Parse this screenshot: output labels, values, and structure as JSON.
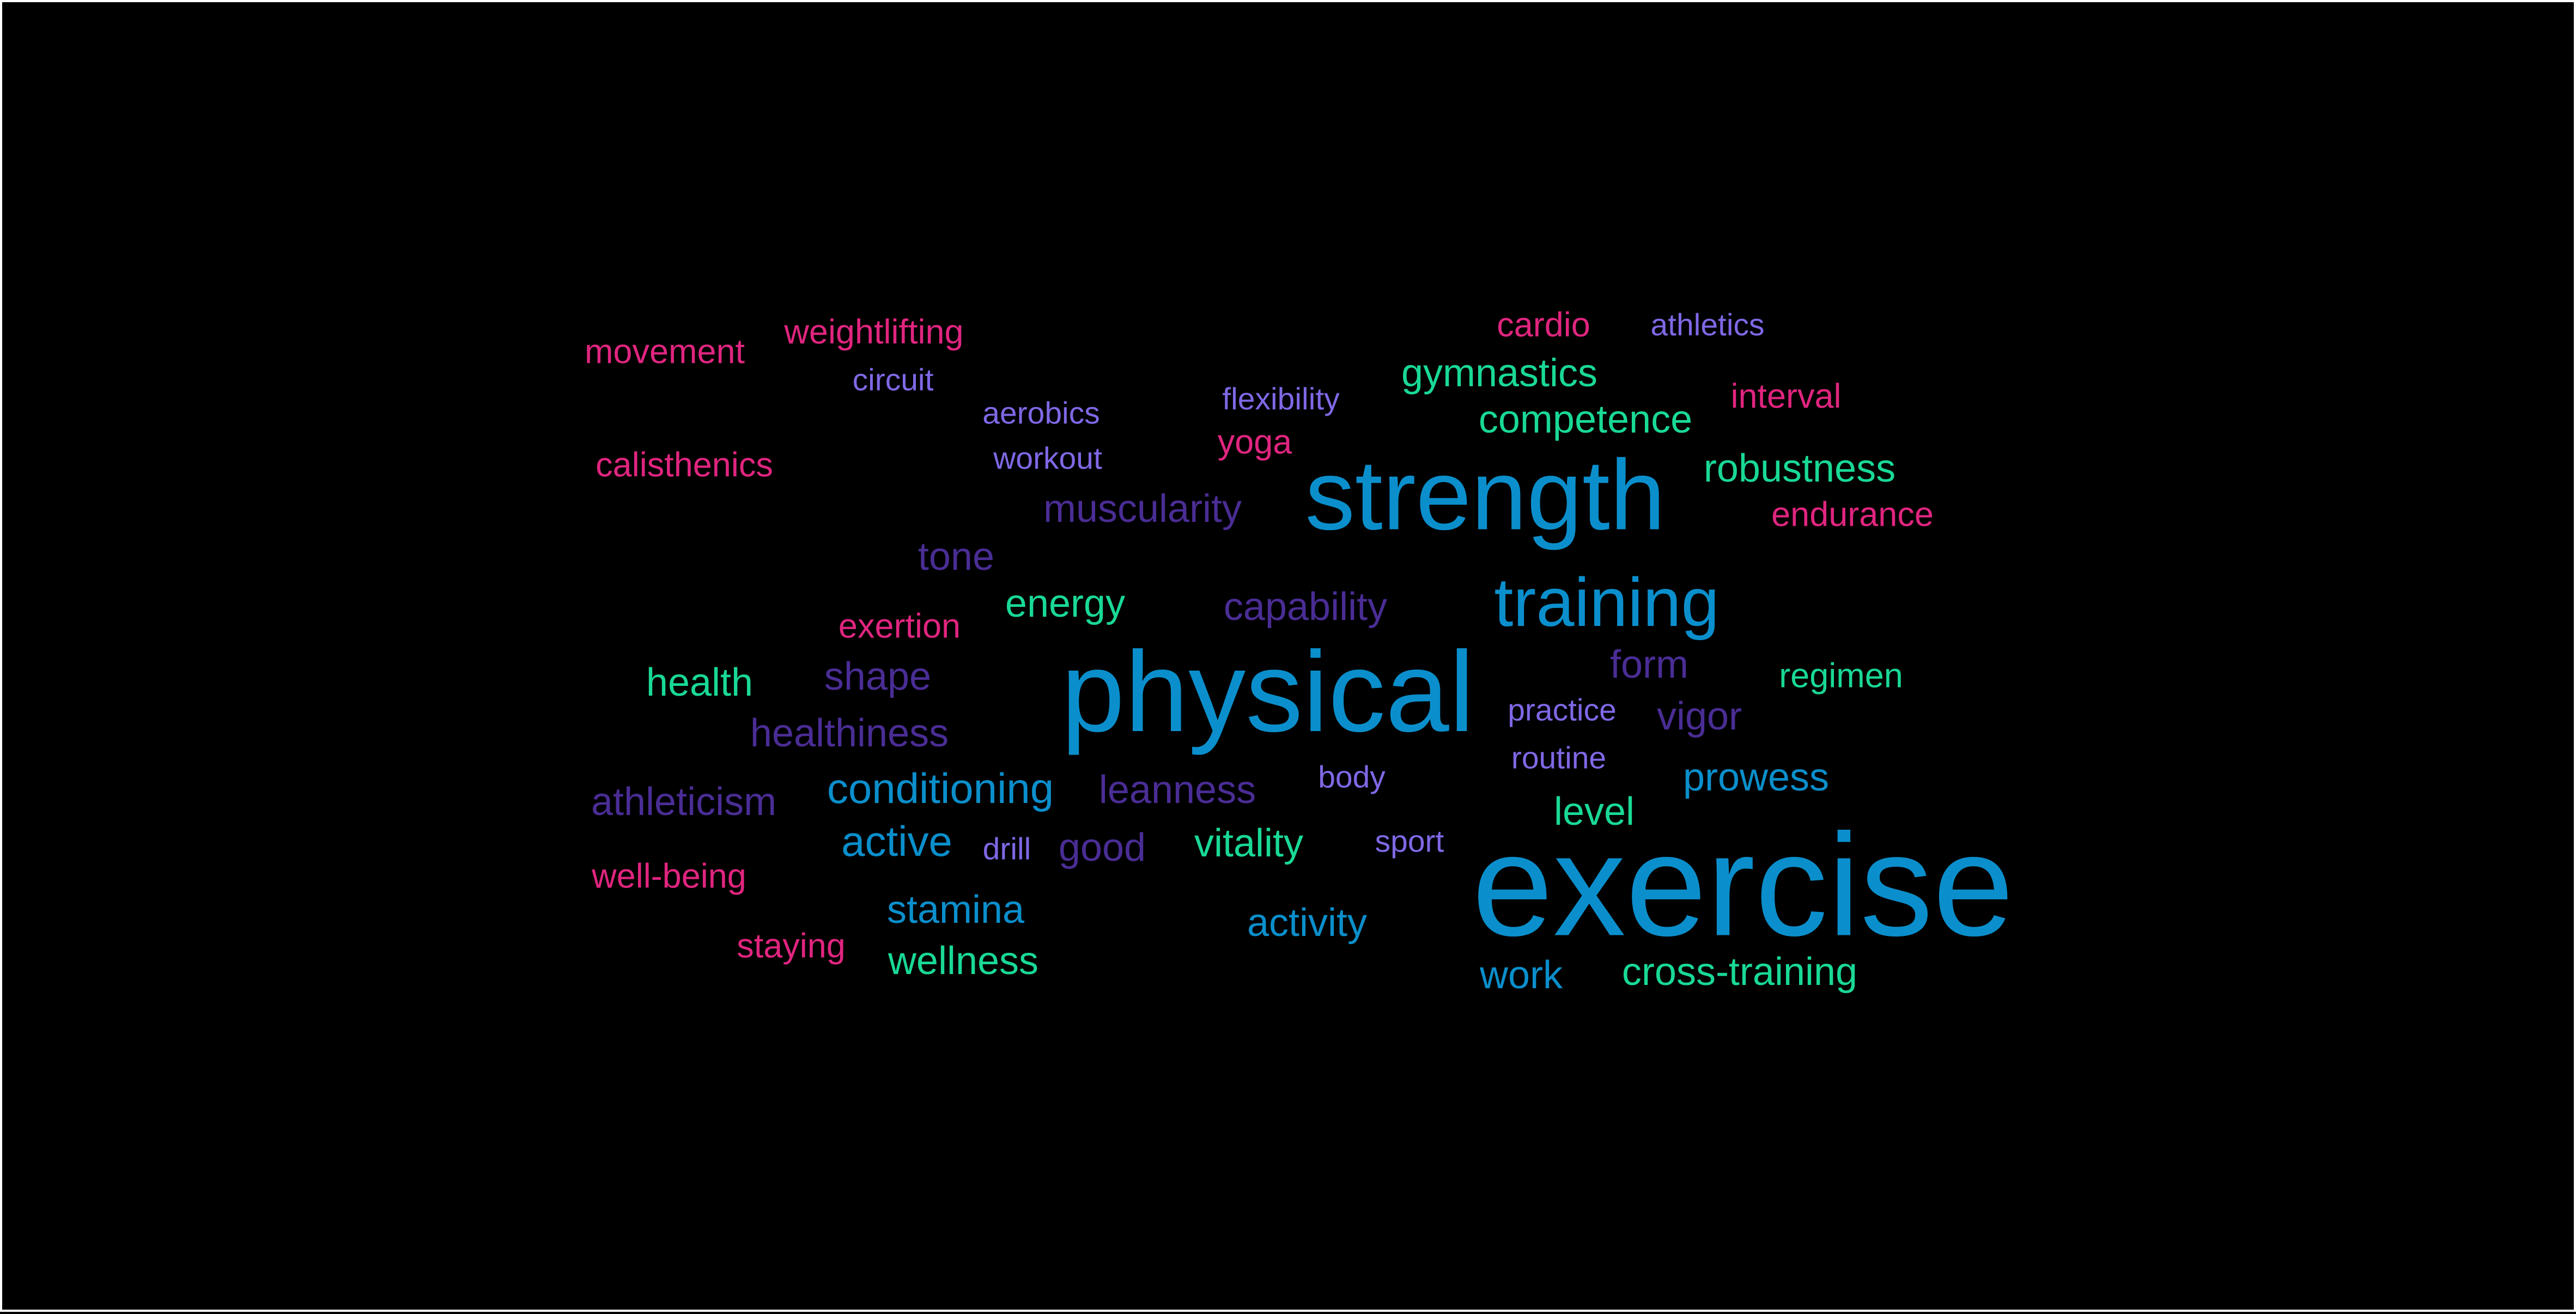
{
  "palette": {
    "background": "#000000",
    "border": "#ffffff",
    "blue": "#0b8fcc",
    "pink": "#e0257f",
    "green": "#19d995",
    "purple": "#8068e6",
    "violet": "#4a2d95"
  },
  "words": {
    "exercise": "exercise",
    "physical": "physical",
    "strength": "strength",
    "training": "training",
    "conditioning": "conditioning",
    "active": "active",
    "stamina": "stamina",
    "activity": "activity",
    "work": "work",
    "prowess": "prowess",
    "competence": "competence",
    "robustness": "robustness",
    "gymnastics": "gymnastics",
    "energy": "energy",
    "health": "health",
    "regimen": "regimen",
    "level": "level",
    "vitality": "vitality",
    "wellness": "wellness",
    "cross_training": "cross-training",
    "cardio": "cardio",
    "interval": "interval",
    "endurance": "endurance",
    "yoga": "yoga",
    "weightlifting": "weightlifting",
    "movement": "movement",
    "calisthenics": "calisthenics",
    "exertion": "exertion",
    "well_being": "well-being",
    "staying": "staying",
    "athletics": "athletics",
    "circuit": "circuit",
    "aerobics": "aerobics",
    "flexibility": "flexibility",
    "workout": "workout",
    "practice": "practice",
    "routine": "routine",
    "body": "body",
    "sport": "sport",
    "drill": "drill",
    "muscularity": "muscularity",
    "tone": "tone",
    "capability": "capability",
    "form": "form",
    "vigor": "vigor",
    "shape": "shape",
    "healthiness": "healthiness",
    "athleticism": "athleticism",
    "leanness": "leanness",
    "good": "good"
  }
}
